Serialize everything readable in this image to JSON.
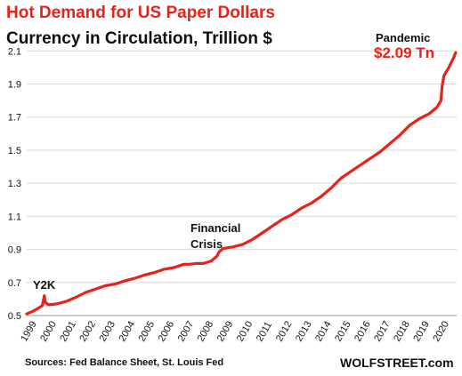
{
  "header": {
    "title": "Hot Demand for US Paper Dollars",
    "subtitle": "Currency in Circulation,  Trillion $"
  },
  "footer": {
    "source": "Sources: Fed Balance Sheet, St. Louis Fed",
    "brand": "WOLFSTREET.com"
  },
  "annotations": {
    "y2k": "Y2K",
    "financial_crisis_line1": "Financial",
    "financial_crisis_line2": "Crisis",
    "pandemic": "Pandemic",
    "pandemic_value": "$2.09 Tn"
  },
  "colors": {
    "line": "#e8221b",
    "grid": "#d9d9d9",
    "axis": "#999999",
    "title": "#e8221b",
    "text": "#111111"
  },
  "chart_data": {
    "type": "line",
    "title": "Hot Demand for US Paper Dollars",
    "subtitle": "Currency in Circulation,  Trillion $",
    "xlabel": "",
    "ylabel": "",
    "xlim": [
      1999,
      2020.9
    ],
    "ylim": [
      0.5,
      2.15
    ],
    "yticks": [
      0.5,
      0.7,
      0.9,
      1.1,
      1.3,
      1.5,
      1.7,
      1.9,
      2.1
    ],
    "ytick_labels": [
      "0.5",
      "0.7",
      "0.9",
      "1.1",
      "1.3",
      "1.5",
      "1.7",
      "1.9",
      "2.1"
    ],
    "xtick_labels": [
      "1999",
      "2000",
      "2001",
      "2002",
      "2003",
      "2004",
      "2005",
      "2006",
      "2007",
      "2008",
      "2009",
      "2010",
      "2011",
      "2012",
      "2013",
      "2014",
      "2015",
      "2016",
      "2017",
      "2018",
      "2019",
      "2020"
    ],
    "grid": "horizontal",
    "series": [
      {
        "x": [
          1999.0,
          1999.3,
          1999.6,
          1999.8,
          1999.9,
          1999.95,
          2000.1,
          2000.5,
          2001.0,
          2001.5,
          2002.0,
          2002.5,
          2003.0,
          2003.5,
          2004.0,
          2004.5,
          2005.0,
          2005.5,
          2006.0,
          2006.5,
          2007.0,
          2007.3,
          2007.6,
          2008.0,
          2008.4,
          2008.7,
          2008.8,
          2009.0,
          2009.5,
          2010.0,
          2010.5,
          2011.0,
          2011.5,
          2012.0,
          2012.5,
          2013.0,
          2013.5,
          2014.0,
          2014.5,
          2015.0,
          2015.5,
          2016.0,
          2016.5,
          2017.0,
          2017.5,
          2018.0,
          2018.5,
          2019.0,
          2019.5,
          2019.9,
          2020.1,
          2020.15,
          2020.25,
          2020.5,
          2020.75,
          2020.85
        ],
        "y": [
          0.51,
          0.525,
          0.545,
          0.56,
          0.62,
          0.58,
          0.565,
          0.57,
          0.585,
          0.61,
          0.64,
          0.66,
          0.68,
          0.69,
          0.71,
          0.725,
          0.745,
          0.76,
          0.78,
          0.79,
          0.81,
          0.81,
          0.815,
          0.815,
          0.83,
          0.86,
          0.885,
          0.905,
          0.915,
          0.93,
          0.96,
          1.0,
          1.04,
          1.08,
          1.11,
          1.15,
          1.18,
          1.22,
          1.27,
          1.33,
          1.37,
          1.41,
          1.45,
          1.49,
          1.54,
          1.59,
          1.65,
          1.69,
          1.72,
          1.76,
          1.8,
          1.88,
          1.95,
          2.0,
          2.06,
          2.09
        ]
      }
    ]
  }
}
